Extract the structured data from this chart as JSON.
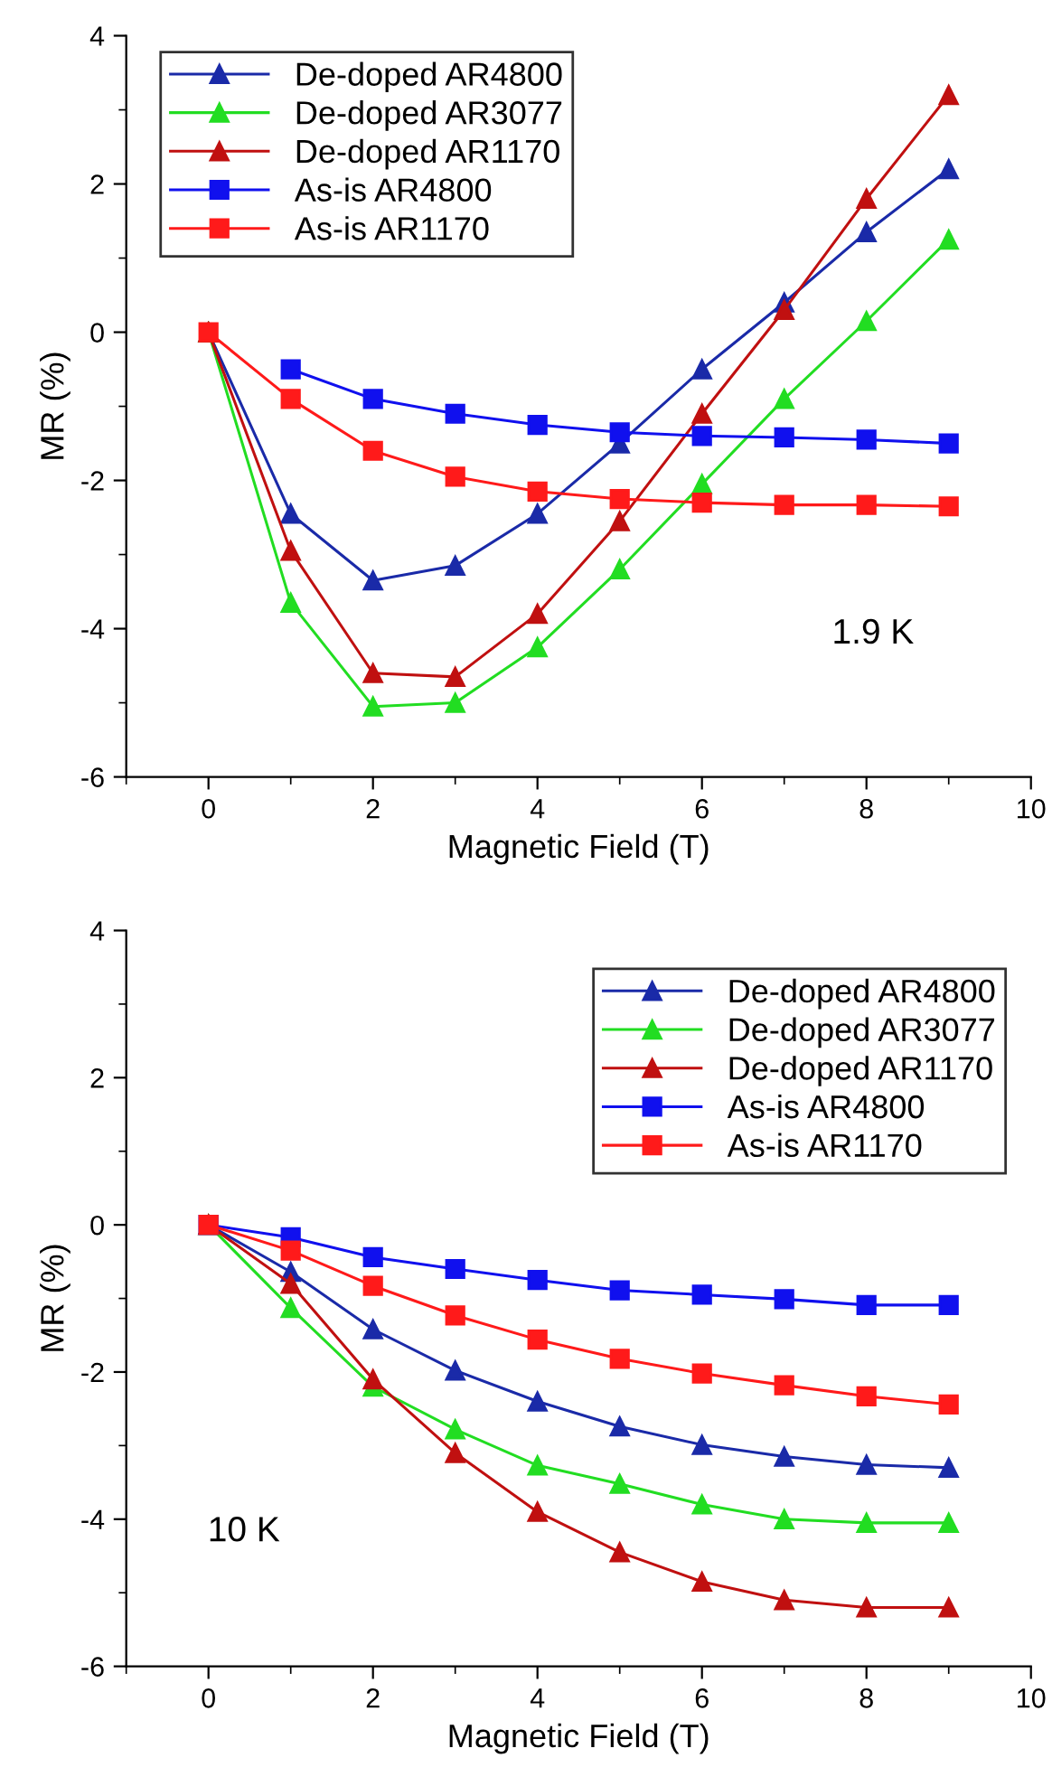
{
  "chart_data": [
    {
      "type": "line",
      "xlabel": "Magnetic Field (T)",
      "ylabel": "MR (%)",
      "x": [
        0,
        1,
        2,
        3,
        4,
        5,
        6,
        7,
        8,
        9
      ],
      "xlim": [
        -1,
        10
      ],
      "xticks": [
        0,
        2,
        4,
        6,
        8,
        10
      ],
      "ylim": [
        -6,
        4
      ],
      "yticks": [
        -6,
        -4,
        -2,
        0,
        2,
        4
      ],
      "grid": false,
      "legend": "top left",
      "annotations": [
        "1.9 K"
      ],
      "series": [
        {
          "name": "De-doped AR4800",
          "color": "#1a2aa8",
          "marker": "triangle",
          "values": [
            0,
            -2.45,
            -3.35,
            -3.15,
            -2.45,
            -1.5,
            -0.5,
            0.4,
            1.35,
            2.2
          ]
        },
        {
          "name": "De-doped AR3077",
          "color": "#22dd22",
          "marker": "triangle",
          "values": [
            0,
            -3.65,
            -5.05,
            -5.0,
            -4.25,
            -3.2,
            -2.05,
            -0.9,
            0.15,
            1.25
          ]
        },
        {
          "name": "De-doped AR1170",
          "color": "#c01010",
          "marker": "triangle",
          "values": [
            0,
            -2.95,
            -4.6,
            -4.65,
            -3.8,
            -2.55,
            -1.1,
            0.3,
            1.8,
            3.2
          ]
        },
        {
          "name": "As-is AR4800",
          "color": "#1010ee",
          "marker": "square",
          "values": [
            null,
            -0.5,
            -0.9,
            -1.1,
            -1.25,
            -1.35,
            -1.4,
            -1.42,
            -1.45,
            -1.5
          ]
        },
        {
          "name": "As-is AR1170",
          "color": "#ff1a1a",
          "marker": "square",
          "values": [
            0,
            -0.9,
            -1.6,
            -1.95,
            -2.15,
            -2.25,
            -2.3,
            -2.33,
            -2.33,
            -2.35
          ]
        }
      ]
    },
    {
      "type": "line",
      "xlabel": "Magnetic Field (T)",
      "ylabel": "MR (%)",
      "x": [
        0,
        1,
        2,
        3,
        4,
        5,
        6,
        7,
        8,
        9
      ],
      "xlim": [
        -1,
        10
      ],
      "xticks": [
        0,
        2,
        4,
        6,
        8,
        10
      ],
      "ylim": [
        -6,
        4
      ],
      "yticks": [
        -6,
        -4,
        -2,
        0,
        2,
        4
      ],
      "grid": false,
      "legend": "top right",
      "annotations": [
        "10 K"
      ],
      "series": [
        {
          "name": "De-doped AR4800",
          "color": "#1a2aa8",
          "marker": "triangle",
          "values": [
            0,
            -0.64,
            -1.42,
            -1.98,
            -2.4,
            -2.74,
            -2.99,
            -3.15,
            -3.26,
            -3.3
          ]
        },
        {
          "name": "De-doped AR3077",
          "color": "#22dd22",
          "marker": "triangle",
          "values": [
            0,
            -1.13,
            -2.2,
            -2.78,
            -3.27,
            -3.52,
            -3.8,
            -4.0,
            -4.05,
            -4.05
          ]
        },
        {
          "name": "De-doped AR1170",
          "color": "#c01010",
          "marker": "triangle",
          "values": [
            0,
            -0.8,
            -2.1,
            -3.1,
            -3.9,
            -4.45,
            -4.85,
            -5.1,
            -5.2,
            -5.2
          ]
        },
        {
          "name": "As-is AR4800",
          "color": "#1010ee",
          "marker": "square",
          "values": [
            0,
            -0.17,
            -0.44,
            -0.6,
            -0.75,
            -0.89,
            -0.95,
            -1.01,
            -1.09,
            -1.09
          ]
        },
        {
          "name": "As-is AR1170",
          "color": "#ff1a1a",
          "marker": "square",
          "values": [
            0,
            -0.35,
            -0.83,
            -1.23,
            -1.56,
            -1.82,
            -2.02,
            -2.18,
            -2.33,
            -2.44
          ]
        }
      ]
    }
  ]
}
